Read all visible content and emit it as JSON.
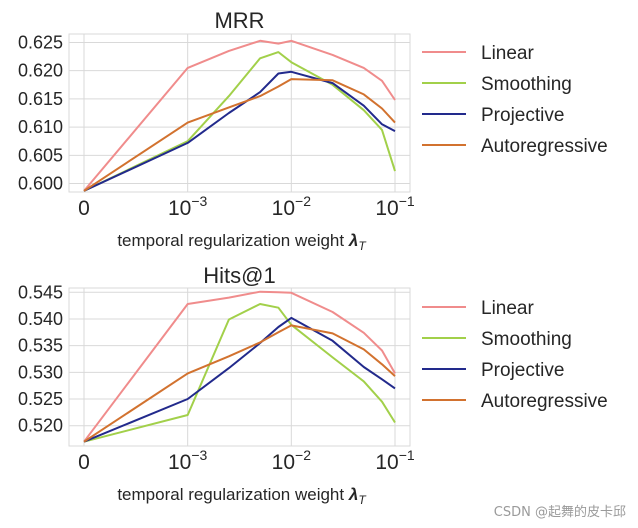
{
  "chart_data": [
    {
      "type": "line",
      "title": "MRR",
      "xlabel": "temporal regularization weight",
      "xlabel_symbol": "λ",
      "xlabel_sub": "T",
      "x_scale": "symlog",
      "x": [
        0,
        0.001,
        0.0025,
        0.005,
        0.0075,
        0.01,
        0.025,
        0.05,
        0.075,
        0.1
      ],
      "xticks": [
        {
          "base": "0",
          "exp": ""
        },
        {
          "base": "10",
          "exp": "−3"
        },
        {
          "base": "10",
          "exp": "−2"
        },
        {
          "base": "10",
          "exp": "−1"
        }
      ],
      "ylim": [
        0.5985,
        0.6265
      ],
      "yticks": [
        "0.600",
        "0.605",
        "0.610",
        "0.615",
        "0.620",
        "0.625"
      ],
      "series": [
        {
          "name": "Linear",
          "color": "#f08c8c",
          "values": [
            0.5987,
            0.6205,
            0.6235,
            0.6253,
            0.6248,
            0.6253,
            0.6228,
            0.6205,
            0.6182,
            0.6148
          ]
        },
        {
          "name": "Smoothing",
          "color": "#a2d04a",
          "values": [
            0.5987,
            0.6075,
            0.6155,
            0.6222,
            0.6233,
            0.6215,
            0.6175,
            0.613,
            0.6095,
            0.6022
          ]
        },
        {
          "name": "Projective",
          "color": "#222a8c",
          "values": [
            0.5987,
            0.6072,
            0.6125,
            0.6162,
            0.6195,
            0.6198,
            0.6178,
            0.6138,
            0.6105,
            0.6093
          ]
        },
        {
          "name": "Autoregressive",
          "color": "#d2722f",
          "values": [
            0.5987,
            0.6108,
            0.6135,
            0.6155,
            0.6172,
            0.6185,
            0.6183,
            0.6158,
            0.6133,
            0.6108
          ]
        }
      ]
    },
    {
      "type": "line",
      "title": "Hits@1",
      "xlabel": "temporal regularization weight",
      "xlabel_symbol": "λ",
      "xlabel_sub": "T",
      "x_scale": "symlog",
      "x": [
        0,
        0.001,
        0.0025,
        0.005,
        0.0075,
        0.01,
        0.025,
        0.05,
        0.075,
        0.1
      ],
      "xticks": [
        {
          "base": "0",
          "exp": ""
        },
        {
          "base": "10",
          "exp": "−3"
        },
        {
          "base": "10",
          "exp": "−2"
        },
        {
          "base": "10",
          "exp": "−1"
        }
      ],
      "ylim": [
        0.5162,
        0.5458
      ],
      "yticks": [
        "0.520",
        "0.525",
        "0.530",
        "0.535",
        "0.540",
        "0.545"
      ],
      "series": [
        {
          "name": "Linear",
          "color": "#f08c8c",
          "values": [
            0.517,
            0.5428,
            0.544,
            0.5451,
            0.545,
            0.5449,
            0.5413,
            0.5374,
            0.5341,
            0.5298
          ]
        },
        {
          "name": "Smoothing",
          "color": "#a2d04a",
          "values": [
            0.517,
            0.522,
            0.5399,
            0.5428,
            0.5421,
            0.5389,
            0.5328,
            0.5283,
            0.5245,
            0.5206
          ]
        },
        {
          "name": "Projective",
          "color": "#222a8c",
          "values": [
            0.517,
            0.525,
            0.5308,
            0.5355,
            0.5385,
            0.5402,
            0.5359,
            0.531,
            0.5287,
            0.527
          ]
        },
        {
          "name": "Autoregressive",
          "color": "#d2722f",
          "values": [
            0.517,
            0.5298,
            0.533,
            0.5356,
            0.5375,
            0.5388,
            0.5373,
            0.5343,
            0.5315,
            0.5293
          ]
        }
      ]
    }
  ],
  "watermark": "CSDN @起舞的皮卡邱"
}
